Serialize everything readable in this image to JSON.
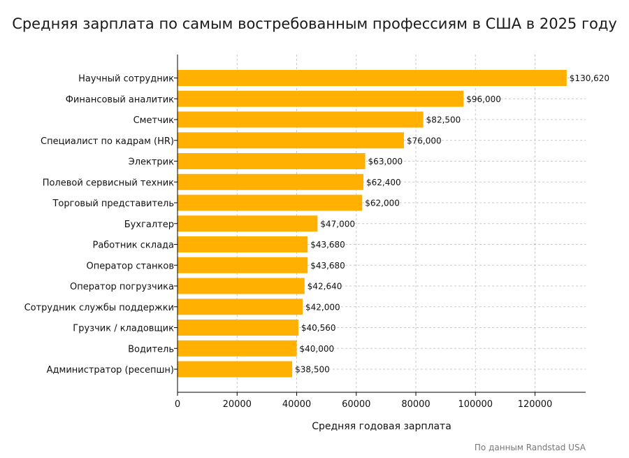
{
  "chart_data": {
    "type": "bar",
    "orientation": "horizontal",
    "title": "Средняя зарплата по самым востребованным профессиям в США в 2025 году",
    "xlabel": "Средняя годовая зарплата",
    "ylabel": "",
    "source": "По данным Randstad USA",
    "categories": [
      "Научный сотрудник",
      "Финансовый аналитик",
      "Сметчик",
      "Специалист по кадрам (HR)",
      "Электрик",
      "Полевой сервисный техник",
      "Торговый представитель",
      "Бухгалтер",
      "Работник склада",
      "Оператор станков",
      "Оператор погрузчика",
      "Сотрудник службы поддержки",
      "Грузчик / кладовщик",
      "Водитель",
      "Администратор (ресепшн)"
    ],
    "values": [
      130620,
      96000,
      82500,
      76000,
      63000,
      62400,
      62000,
      47000,
      43680,
      43680,
      42640,
      42000,
      40560,
      40000,
      38500
    ],
    "value_labels": [
      "$130,620",
      "$96,000",
      "$82,500",
      "$76,000",
      "$63,000",
      "$62,400",
      "$62,000",
      "$47,000",
      "$43,680",
      "$43,680",
      "$42,640",
      "$42,000",
      "$40,560",
      "$40,000",
      "$38,500"
    ],
    "x_ticks": [
      0,
      20000,
      40000,
      60000,
      80000,
      100000,
      120000
    ],
    "x_tick_labels": [
      "0",
      "20000",
      "40000",
      "60000",
      "80000",
      "100000",
      "120000"
    ],
    "xlim": [
      0,
      137000
    ],
    "grid": true,
    "legend": "none",
    "bar_color": "#FFB000"
  }
}
